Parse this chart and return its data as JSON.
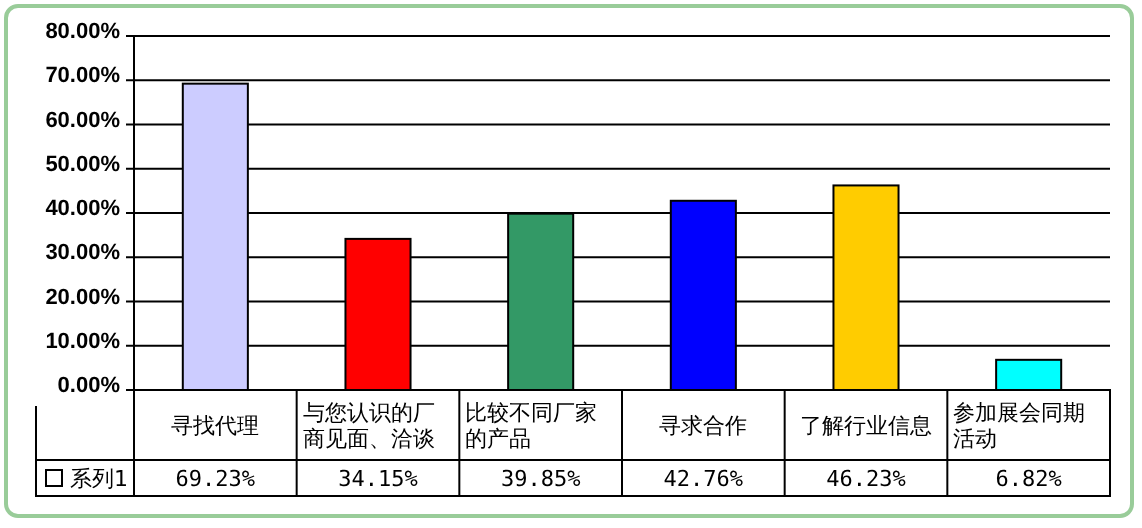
{
  "chart_data": {
    "type": "bar",
    "categories": [
      "寻找代理",
      "与您认识的厂商见面、洽谈",
      "比较不同厂家的产品",
      "寻求合作",
      "了解行业信息",
      "参加展会同期活动"
    ],
    "series": [
      {
        "name": "系列1",
        "values": [
          69.23,
          34.15,
          39.85,
          42.76,
          46.23,
          6.82
        ],
        "colors": [
          "#ccccff",
          "#ff0000",
          "#339966",
          "#0000ff",
          "#ffcc00",
          "#00ffff"
        ],
        "value_labels": [
          "69.23%",
          "34.15%",
          "39.85%",
          "42.76%",
          "46.23%",
          "6.82%"
        ]
      }
    ],
    "ylim": [
      0,
      80
    ],
    "yticks": [
      {
        "value": 0,
        "label": "0.00%"
      },
      {
        "value": 10,
        "label": "10.00%"
      },
      {
        "value": 20,
        "label": "20.00%"
      },
      {
        "value": 30,
        "label": "30.00%"
      },
      {
        "value": 40,
        "label": "40.00%"
      },
      {
        "value": 50,
        "label": "50.00%"
      },
      {
        "value": 60,
        "label": "60.00%"
      },
      {
        "value": 70,
        "label": "70.00%"
      },
      {
        "value": 80,
        "label": "80.00%"
      }
    ],
    "grid": "y"
  }
}
